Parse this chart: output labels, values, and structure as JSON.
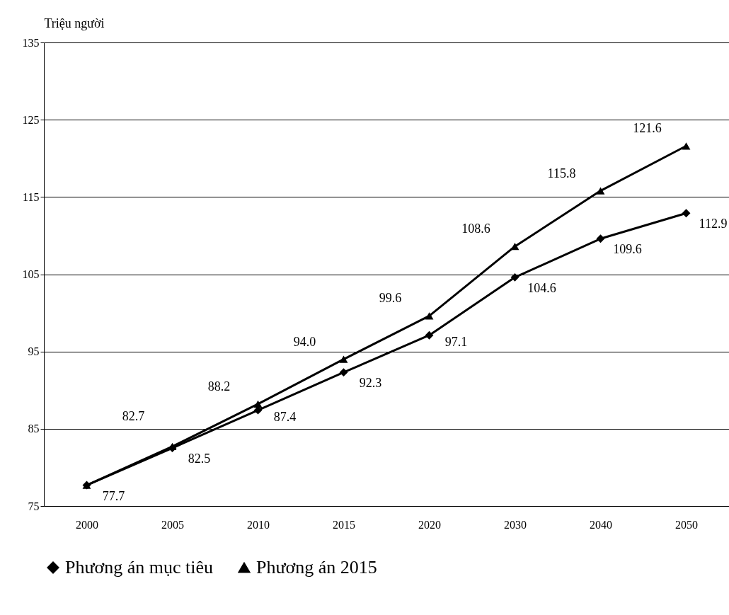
{
  "chart_data": {
    "type": "line",
    "ylabel": "Triệu người",
    "categories": [
      "2000",
      "2005",
      "2010",
      "2015",
      "2020",
      "2030",
      "2040",
      "2050"
    ],
    "series": [
      {
        "name": "Phương án mục tiêu",
        "color": "#000000",
        "marker": "diamond",
        "values": [
          77.7,
          82.5,
          87.4,
          92.3,
          97.1,
          104.6,
          109.6,
          112.9
        ],
        "value_labels": [
          "77.7",
          "82.5",
          "87.4",
          "92.3",
          "97.1",
          "104.6",
          "109.6",
          "112.9"
        ]
      },
      {
        "name": "Phương án 2015",
        "color": "#000000",
        "marker": "triangle",
        "values": [
          77.7,
          82.7,
          88.2,
          94.0,
          99.6,
          108.6,
          115.8,
          121.6
        ],
        "value_labels": [
          null,
          "82.7",
          "88.2",
          "94.0",
          "99.6",
          "108.6",
          "115.8",
          "121.6"
        ]
      }
    ],
    "ylim": [
      75,
      135
    ],
    "yticks": [
      75,
      85,
      95,
      105,
      115,
      125,
      135
    ],
    "grid": "y",
    "legend": "bottom"
  }
}
